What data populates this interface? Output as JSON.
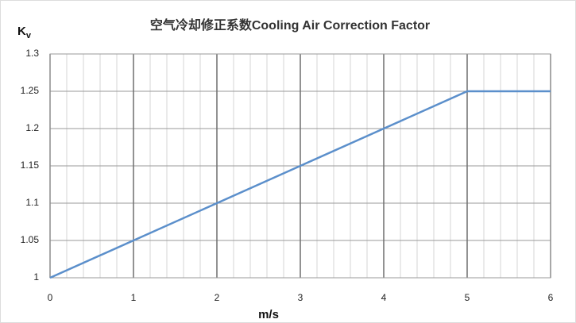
{
  "chart_data": {
    "type": "line",
    "title": "空气冷却修正系数Cooling Air Correction Factor",
    "ylabel": "K",
    "ylabel_subscript": "v",
    "xlabel": "m/s",
    "x": [
      0,
      1,
      2,
      3,
      4,
      5,
      6
    ],
    "series": [
      {
        "color": "#5b8fcb",
        "values": [
          1,
          1.05,
          1.1,
          1.15,
          1.2,
          1.25,
          1.25
        ]
      }
    ],
    "xlim": [
      0,
      6
    ],
    "ylim": [
      1,
      1.3
    ],
    "xticks": [
      0,
      1,
      2,
      3,
      4,
      5,
      6
    ],
    "xminorticks": [
      0.2,
      0.4,
      0.6,
      0.8,
      1.2,
      1.4,
      1.6,
      1.8,
      2.2,
      2.4,
      2.6,
      2.8,
      3.2,
      3.4,
      3.6,
      3.8,
      4.2,
      4.4,
      4.6,
      4.8,
      5.2,
      5.4,
      5.6,
      5.8
    ],
    "yticks": [
      1,
      1.05,
      1.1,
      1.15,
      1.2,
      1.25,
      1.3
    ],
    "grid": true
  }
}
